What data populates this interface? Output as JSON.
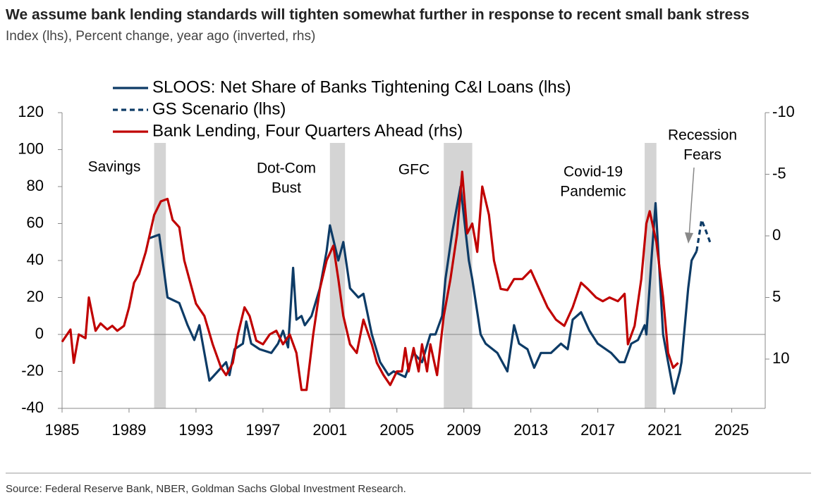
{
  "chart_data": {
    "type": "line",
    "title": "We assume bank lending standards will tighten somewhat further in response to recent small bank stress",
    "subtitle": "Index (lhs), Percent change, year ago (inverted, rhs)",
    "source": "Source: Federal Reserve Bank, NBER, Goldman Sachs Global Investment Research.",
    "xlim": [
      1985,
      2027
    ],
    "xticks": [
      1985,
      1989,
      1993,
      1997,
      2001,
      2005,
      2009,
      2013,
      2017,
      2021,
      2025
    ],
    "ylim": [
      -40,
      120
    ],
    "yticks": [
      -40,
      -20,
      0,
      20,
      40,
      60,
      80,
      100,
      120
    ],
    "y2lim": [
      -10,
      14
    ],
    "y2_inverted": true,
    "y2ticks": [
      -10,
      -5,
      0,
      5,
      10
    ],
    "recessions": [
      [
        1990.5,
        1991.2
      ],
      [
        2001.0,
        2001.9
      ],
      [
        2007.8,
        2009.5
      ],
      [
        2019.8,
        2020.5
      ]
    ],
    "annotations": [
      [
        "Savings"
      ],
      [
        "Dot-Com",
        "Bust"
      ],
      [
        "GFC"
      ],
      [
        "Covid-19",
        "Pandemic"
      ],
      [
        "Recession",
        "Fears"
      ]
    ],
    "series": [
      {
        "name": "SLOOS: Net Share of Banks Tightening C&I Loans (lhs)",
        "color": "#0d3b66",
        "dashed": false,
        "x": [
          1990.2,
          1990.8,
          1991.3,
          1992.0,
          1992.5,
          1992.9,
          1993.2,
          1993.8,
          1994.3,
          1994.8,
          1995.0,
          1995.3,
          1995.8,
          1996.0,
          1996.3,
          1996.8,
          1997.5,
          1997.9,
          1998.2,
          1998.5,
          1998.8,
          1999.0,
          1999.3,
          1999.5,
          1999.9,
          2000.4,
          2000.8,
          2001.0,
          2001.5,
          2001.8,
          2002.2,
          2002.7,
          2003.0,
          2003.5,
          2004.0,
          2004.5,
          2004.8,
          2005.5,
          2006.0,
          2006.5,
          2007.0,
          2007.3,
          2007.7,
          2007.9,
          2008.3,
          2008.8,
          2009.3,
          2009.5,
          2010.0,
          2010.3,
          2011.0,
          2011.6,
          2012.0,
          2012.3,
          2012.8,
          2013.2,
          2013.6,
          2014.2,
          2014.8,
          2015.2,
          2015.5,
          2016.0,
          2016.5,
          2017.0,
          2017.8,
          2018.3,
          2018.6,
          2019.0,
          2019.4,
          2019.8,
          2019.9,
          2020.2,
          2020.45,
          2020.9,
          2021.2,
          2021.55,
          2021.9,
          2022.0,
          2022.4,
          2022.6,
          2022.9
        ],
        "values": [
          52,
          54,
          20,
          17,
          5,
          -3,
          5,
          -25,
          -20,
          -15,
          -22,
          -8,
          -5,
          7,
          -5,
          -8,
          -10,
          -5,
          2,
          -7,
          36,
          8,
          10,
          5,
          10,
          25,
          45,
          59,
          40,
          50,
          25,
          20,
          22,
          0,
          -15,
          -22,
          -20,
          -23,
          -10,
          -15,
          0,
          0,
          10,
          30,
          55,
          80,
          40,
          30,
          0,
          -5,
          -10,
          -20,
          5,
          -5,
          -8,
          -18,
          -10,
          -10,
          -5,
          -8,
          8,
          12,
          2,
          -5,
          -10,
          -15,
          -15,
          -5,
          -3,
          5,
          0,
          40,
          71,
          0,
          -15,
          -32,
          -20,
          -15,
          25,
          40,
          45
        ]
      },
      {
        "name": "GS Scenario (lhs)",
        "color": "#0d3b66",
        "dashed": true,
        "x": [
          2022.9,
          2023.2,
          2023.5,
          2023.7
        ],
        "values": [
          45,
          62,
          55,
          50
        ]
      },
      {
        "name": "Bank Lending, Four Quarters Ahead (rhs)",
        "color": "#c00000",
        "dashed": false,
        "axis": "y2",
        "x": [
          1985.0,
          1985.5,
          1985.7,
          1986.0,
          1986.4,
          1986.6,
          1987.0,
          1987.3,
          1987.7,
          1988.0,
          1988.3,
          1988.7,
          1989.0,
          1989.3,
          1989.6,
          1990.0,
          1990.5,
          1990.9,
          1991.3,
          1991.6,
          1992.0,
          1992.3,
          1992.6,
          1993.0,
          1993.5,
          1994.0,
          1994.5,
          1994.8,
          1995.2,
          1995.5,
          1995.9,
          1996.2,
          1996.6,
          1997.0,
          1997.4,
          1997.8,
          1998.2,
          1998.6,
          1999.0,
          1999.3,
          1999.6,
          2000.0,
          2000.4,
          2000.8,
          2001.2,
          2001.5,
          2001.8,
          2002.2,
          2002.6,
          2003.0,
          2003.5,
          2003.8,
          2004.2,
          2004.6,
          2005.0,
          2005.3,
          2005.5,
          2005.7,
          2006.0,
          2006.3,
          2006.5,
          2006.8,
          2007.0,
          2007.4,
          2007.8,
          2008.2,
          2008.6,
          2008.9,
          2009.2,
          2009.5,
          2009.8,
          2010.1,
          2010.5,
          2010.8,
          2011.2,
          2011.6,
          2012.0,
          2012.5,
          2013.0,
          2013.5,
          2014.0,
          2014.5,
          2015.0,
          2015.5,
          2016.0,
          2016.4,
          2016.9,
          2017.3,
          2017.7,
          2018.2,
          2018.6,
          2018.8,
          2019.2,
          2019.6,
          2019.9,
          2020.1,
          2020.5,
          2020.9,
          2021.2,
          2021.5,
          2021.8
        ],
        "values": [
          8.6,
          7.6,
          10.3,
          8.0,
          8.3,
          5.0,
          7.7,
          7.1,
          7.6,
          7.3,
          7.7,
          7.3,
          5.8,
          3.8,
          3.1,
          1.3,
          -1.7,
          -2.8,
          -3.0,
          -1.3,
          -0.7,
          2.0,
          3.5,
          5.5,
          6.5,
          8.8,
          10.7,
          11.3,
          10.3,
          8.0,
          5.8,
          6.5,
          8.5,
          8.8,
          8.0,
          7.7,
          8.8,
          8.0,
          9.5,
          12.5,
          12.5,
          8.0,
          4.3,
          2.0,
          0.8,
          3.5,
          6.5,
          8.8,
          9.5,
          6.8,
          8.8,
          10.3,
          11.3,
          12.1,
          11.0,
          11.0,
          9.1,
          11.0,
          9.1,
          11.0,
          8.8,
          11.0,
          8.8,
          11.3,
          6.5,
          3.5,
          -0.2,
          -5.2,
          -0.2,
          -1.0,
          1.3,
          -4.0,
          -1.7,
          2.0,
          4.3,
          4.4,
          3.5,
          3.5,
          2.8,
          4.3,
          5.8,
          6.8,
          7.3,
          5.8,
          3.8,
          4.3,
          5.0,
          5.3,
          5.0,
          5.3,
          4.7,
          8.8,
          7.3,
          3.5,
          -1.0,
          -2.0,
          0.5,
          5.0,
          9.5,
          10.7,
          10.3
        ]
      }
    ]
  }
}
